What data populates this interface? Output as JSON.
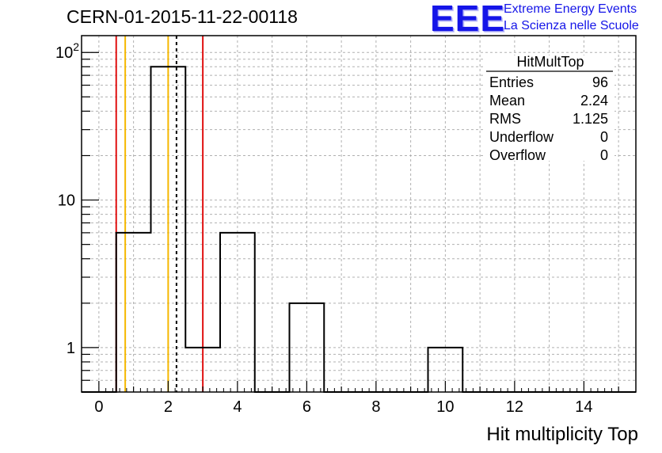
{
  "header": {
    "run_title": "CERN-01-2015-11-22-00118",
    "logo_text": "EEE",
    "logo_line1": "Extreme Energy Events",
    "logo_line2": "La Scienza nelle Scuole",
    "logo_color": "#1515e8"
  },
  "stats_box": {
    "title": "HitMultTop",
    "rows": [
      {
        "label": "Entries",
        "value": "96"
      },
      {
        "label": "Mean",
        "value": "2.24"
      },
      {
        "label": "RMS",
        "value": "1.125"
      },
      {
        "label": "Underflow",
        "value": "0"
      },
      {
        "label": "Overflow",
        "value": "0"
      }
    ]
  },
  "chart_data": {
    "type": "histogram",
    "title": "",
    "xlabel": "Hit multiplicity Top",
    "ylabel": "",
    "xlim": [
      -0.5,
      15.5
    ],
    "ylim": [
      0.5,
      130
    ],
    "log_y": true,
    "grid": true,
    "x_ticks": [
      "0",
      "2",
      "4",
      "6",
      "8",
      "10",
      "12",
      "14"
    ],
    "y_ticks": [
      {
        "value": 1,
        "label": "1"
      },
      {
        "value": 10,
        "label": "10"
      },
      {
        "value": 100,
        "label": "10",
        "sup": "2"
      }
    ],
    "bins": [
      {
        "x": 1,
        "count": 6
      },
      {
        "x": 2,
        "count": 80
      },
      {
        "x": 3,
        "count": 1
      },
      {
        "x": 4,
        "count": 6
      },
      {
        "x": 6,
        "count": 2
      },
      {
        "x": 10,
        "count": 1
      }
    ],
    "vertical_lines": [
      {
        "x": 0.5,
        "color": "#e01010",
        "style": "solid"
      },
      {
        "x": 0.76,
        "color": "#f5b800",
        "style": "solid"
      },
      {
        "x": 2.0,
        "color": "#f5b800",
        "style": "solid"
      },
      {
        "x": 2.24,
        "color": "#000000",
        "style": "dashed"
      },
      {
        "x": 3.0,
        "color": "#e01010",
        "style": "solid"
      }
    ],
    "line_color": "#000000",
    "grid_color": "#b0b0b0"
  }
}
